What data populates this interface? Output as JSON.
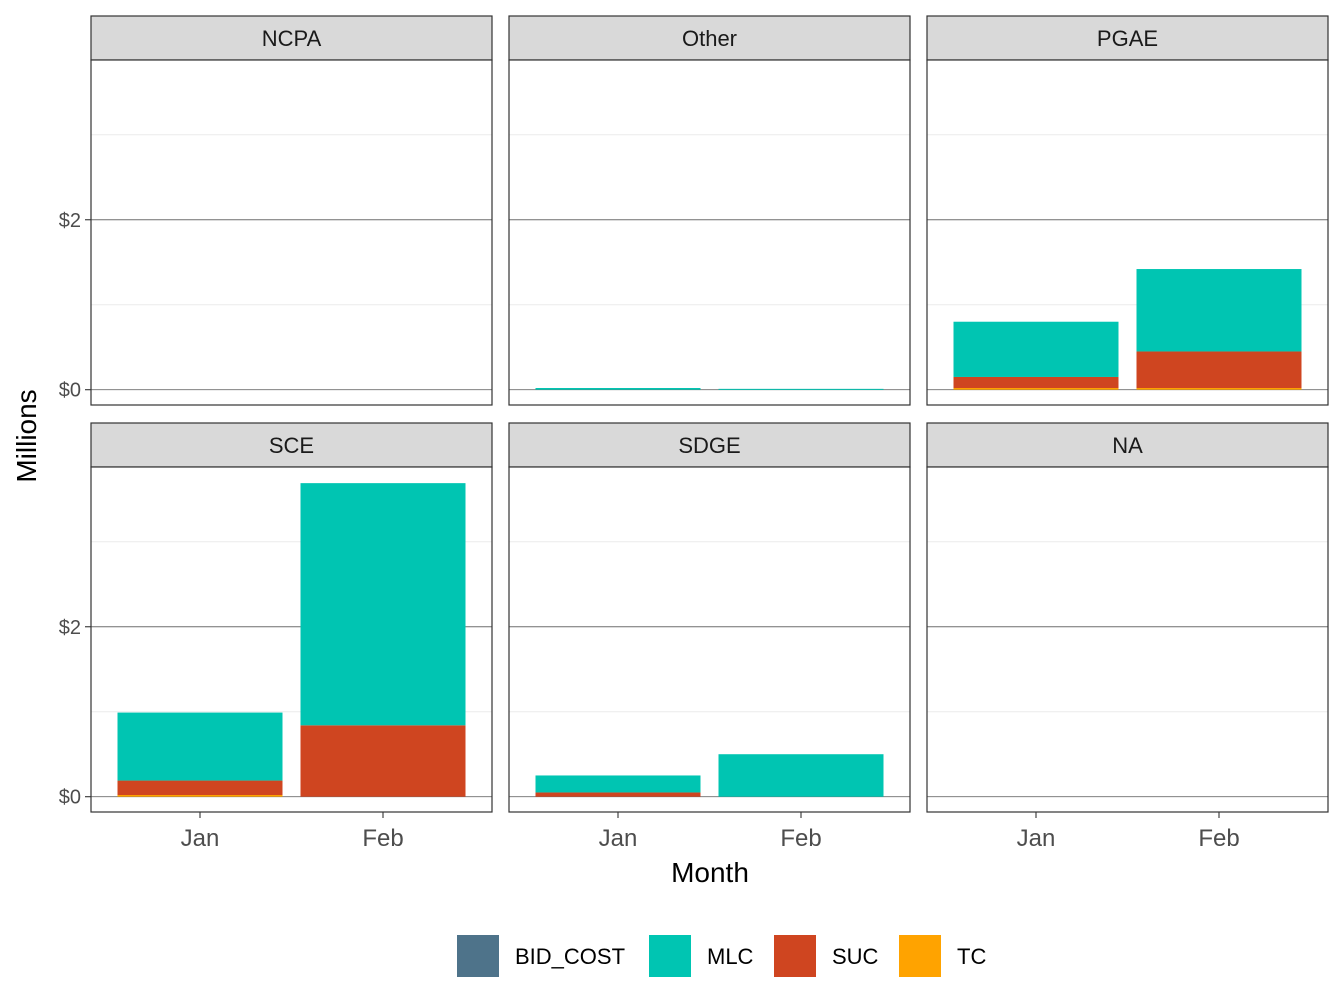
{
  "chart_data": {
    "type": "bar",
    "stacked": true,
    "facet_layout": "3 columns x 2 rows",
    "xlabel": "Month",
    "ylabel": "Millions",
    "categories": [
      "Jan",
      "Feb"
    ],
    "y_ticks": [
      "$0",
      "$2"
    ],
    "y_tick_values": [
      0,
      2
    ],
    "ylim": [
      -0.18,
      3.88
    ],
    "grid": true,
    "legend_position": "bottom",
    "legend": [
      {
        "name": "BID_COST",
        "color": "#4e738a"
      },
      {
        "name": "MLC",
        "color": "#00c5b2"
      },
      {
        "name": "SUC",
        "color": "#cf4520"
      },
      {
        "name": "TC",
        "color": "#ffa300"
      }
    ],
    "panels": [
      {
        "label": "NCPA",
        "series": {
          "BID_COST": [
            0,
            0
          ],
          "MLC": [
            0,
            0
          ],
          "SUC": [
            0,
            0
          ],
          "TC": [
            0,
            0
          ]
        }
      },
      {
        "label": "Other",
        "series": {
          "BID_COST": [
            0,
            0
          ],
          "MLC": [
            0.02,
            0.01
          ],
          "SUC": [
            0,
            0
          ],
          "TC": [
            0,
            0
          ]
        }
      },
      {
        "label": "PGAE",
        "series": {
          "BID_COST": [
            0,
            0
          ],
          "MLC": [
            0.65,
            0.97
          ],
          "SUC": [
            0.13,
            0.43
          ],
          "TC": [
            0.02,
            0.02
          ]
        }
      },
      {
        "label": "SCE",
        "series": {
          "BID_COST": [
            0,
            0
          ],
          "MLC": [
            0.8,
            2.85
          ],
          "SUC": [
            0.17,
            0.84
          ],
          "TC": [
            0.02,
            0
          ]
        }
      },
      {
        "label": "SDGE",
        "series": {
          "BID_COST": [
            0,
            0
          ],
          "MLC": [
            0.2,
            0.5
          ],
          "SUC": [
            0.05,
            0
          ],
          "TC": [
            0,
            0
          ]
        }
      },
      {
        "label": "NA",
        "series": {
          "BID_COST": [
            0,
            0
          ],
          "MLC": [
            0,
            0
          ],
          "SUC": [
            0,
            0
          ],
          "TC": [
            0,
            0
          ]
        }
      }
    ]
  }
}
